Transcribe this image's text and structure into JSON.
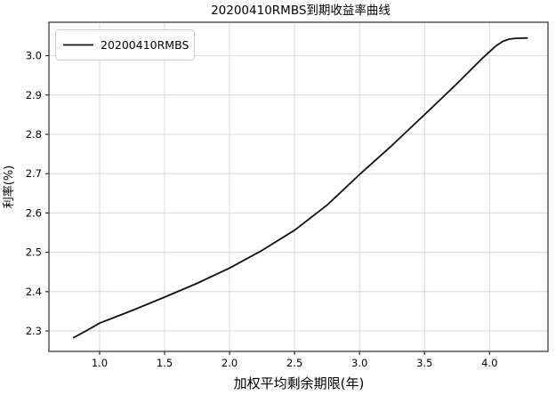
{
  "chart_data": {
    "type": "line",
    "title": "20200410RMBS到期收益率曲线",
    "xlabel": "加权平均剩余期限(年)",
    "ylabel": "利率(%)",
    "legend": {
      "position": "upper-left",
      "entries": [
        "20200410RMBS"
      ]
    },
    "xlim": [
      0.61,
      4.45
    ],
    "ylim": [
      2.248,
      3.085
    ],
    "xticks": [
      1.0,
      1.5,
      2.0,
      2.5,
      3.0,
      3.5,
      4.0
    ],
    "yticks": [
      2.3,
      2.4,
      2.5,
      2.6,
      2.7,
      2.8,
      2.9,
      3.0
    ],
    "grid": true,
    "series": [
      {
        "name": "20200410RMBS",
        "x": [
          0.8,
          0.9,
          1.0,
          1.25,
          1.5,
          1.75,
          2.0,
          2.25,
          2.5,
          2.75,
          3.0,
          3.25,
          3.5,
          3.75,
          3.95,
          4.05,
          4.1,
          4.15,
          4.2,
          4.29
        ],
        "y": [
          2.283,
          2.301,
          2.32,
          2.352,
          2.386,
          2.421,
          2.46,
          2.505,
          2.556,
          2.62,
          2.698,
          2.772,
          2.85,
          2.929,
          2.995,
          3.025,
          3.036,
          3.042,
          3.044,
          3.045
        ]
      }
    ],
    "colors": {
      "line": "#111111",
      "grid": "#d9d9d9",
      "spine": "#2b2b2b",
      "tick": "#2b2b2b",
      "legend_border": "#cccccc",
      "background": "#ffffff"
    }
  }
}
